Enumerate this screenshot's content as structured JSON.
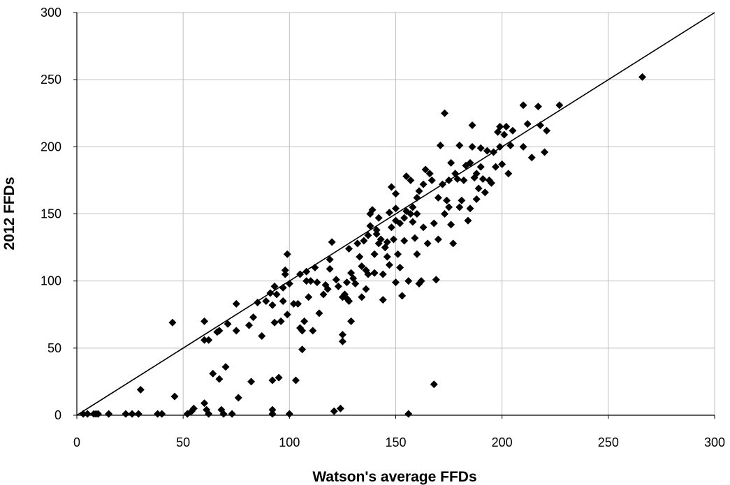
{
  "chart_data": {
    "type": "scatter",
    "title": "",
    "xlabel": "Watson's average FFDs",
    "ylabel": "2012 FFDs",
    "xlim": [
      0,
      300
    ],
    "ylim": [
      0,
      300
    ],
    "xticks": [
      0,
      50,
      100,
      150,
      200,
      250,
      300
    ],
    "yticks": [
      0,
      50,
      100,
      150,
      200,
      250,
      300
    ],
    "grid": true,
    "legend": "none",
    "marker": "diamond",
    "colors": {
      "marker": "#000000",
      "grid": "#bfbfbf",
      "axis": "#000000",
      "line": "#000000"
    },
    "reference_line": {
      "x": [
        0,
        300
      ],
      "y": [
        0,
        300
      ]
    },
    "points": [
      [
        3,
        1
      ],
      [
        5,
        1
      ],
      [
        8,
        1
      ],
      [
        9,
        1
      ],
      [
        10,
        1
      ],
      [
        15,
        1
      ],
      [
        23,
        1
      ],
      [
        26,
        1
      ],
      [
        29,
        1
      ],
      [
        30,
        19
      ],
      [
        38,
        1
      ],
      [
        40,
        1
      ],
      [
        45,
        69
      ],
      [
        46,
        14
      ],
      [
        52,
        1
      ],
      [
        54,
        3
      ],
      [
        55,
        5
      ],
      [
        60,
        70
      ],
      [
        60,
        56
      ],
      [
        60,
        9
      ],
      [
        61,
        4
      ],
      [
        62,
        1
      ],
      [
        62,
        56
      ],
      [
        64,
        31
      ],
      [
        66,
        62
      ],
      [
        67,
        63
      ],
      [
        67,
        27
      ],
      [
        68,
        4
      ],
      [
        69,
        1
      ],
      [
        70,
        36
      ],
      [
        71,
        68
      ],
      [
        73,
        1
      ],
      [
        75,
        63
      ],
      [
        75,
        83
      ],
      [
        76,
        13
      ],
      [
        81,
        67
      ],
      [
        82,
        25
      ],
      [
        83,
        73
      ],
      [
        85,
        84
      ],
      [
        87,
        59
      ],
      [
        89,
        85
      ],
      [
        91,
        91
      ],
      [
        92,
        4
      ],
      [
        92,
        1
      ],
      [
        92,
        26
      ],
      [
        92,
        82
      ],
      [
        93,
        96
      ],
      [
        93,
        69
      ],
      [
        94,
        90
      ],
      [
        95,
        28
      ],
      [
        96,
        70
      ],
      [
        97,
        95
      ],
      [
        97,
        85
      ],
      [
        98,
        105
      ],
      [
        98,
        108
      ],
      [
        99,
        120
      ],
      [
        99,
        75
      ],
      [
        100,
        1
      ],
      [
        100,
        98
      ],
      [
        102,
        83
      ],
      [
        103,
        26
      ],
      [
        104,
        83
      ],
      [
        105,
        65
      ],
      [
        105,
        105
      ],
      [
        106,
        49
      ],
      [
        106,
        63
      ],
      [
        107,
        70
      ],
      [
        108,
        107
      ],
      [
        108,
        100
      ],
      [
        109,
        88
      ],
      [
        110,
        100
      ],
      [
        111,
        63
      ],
      [
        112,
        110
      ],
      [
        113,
        99
      ],
      [
        114,
        76
      ],
      [
        116,
        90
      ],
      [
        117,
        97
      ],
      [
        118,
        94
      ],
      [
        119,
        116
      ],
      [
        119,
        109
      ],
      [
        120,
        129
      ],
      [
        121,
        3
      ],
      [
        122,
        101
      ],
      [
        123,
        96
      ],
      [
        124,
        5
      ],
      [
        125,
        55
      ],
      [
        125,
        60
      ],
      [
        125,
        88
      ],
      [
        126,
        90
      ],
      [
        127,
        87
      ],
      [
        127,
        99
      ],
      [
        128,
        124
      ],
      [
        128,
        85
      ],
      [
        129,
        106
      ],
      [
        129,
        70
      ],
      [
        130,
        102
      ],
      [
        131,
        98
      ],
      [
        132,
        128
      ],
      [
        133,
        118
      ],
      [
        134,
        111
      ],
      [
        134,
        88
      ],
      [
        135,
        130
      ],
      [
        136,
        94
      ],
      [
        136,
        108
      ],
      [
        137,
        134
      ],
      [
        137,
        105
      ],
      [
        138,
        150
      ],
      [
        138,
        141
      ],
      [
        139,
        153
      ],
      [
        140,
        120
      ],
      [
        140,
        106
      ],
      [
        141,
        138
      ],
      [
        141,
        135
      ],
      [
        142,
        147
      ],
      [
        142,
        128
      ],
      [
        143,
        131
      ],
      [
        144,
        86
      ],
      [
        144,
        105
      ],
      [
        145,
        125
      ],
      [
        146,
        129
      ],
      [
        146,
        118
      ],
      [
        147,
        112
      ],
      [
        147,
        151
      ],
      [
        148,
        140
      ],
      [
        148,
        170
      ],
      [
        149,
        131
      ],
      [
        150,
        165
      ],
      [
        150,
        154
      ],
      [
        150,
        99
      ],
      [
        150,
        145
      ],
      [
        151,
        120
      ],
      [
        152,
        143
      ],
      [
        152,
        110
      ],
      [
        153,
        89
      ],
      [
        154,
        147
      ],
      [
        154,
        130
      ],
      [
        155,
        152
      ],
      [
        155,
        178
      ],
      [
        156,
        100
      ],
      [
        156,
        1
      ],
      [
        157,
        150
      ],
      [
        157,
        175
      ],
      [
        158,
        144
      ],
      [
        158,
        155
      ],
      [
        159,
        132
      ],
      [
        160,
        120
      ],
      [
        160,
        150
      ],
      [
        160,
        162
      ],
      [
        161,
        167
      ],
      [
        161,
        98
      ],
      [
        162,
        100
      ],
      [
        163,
        140
      ],
      [
        163,
        172
      ],
      [
        164,
        183
      ],
      [
        165,
        128
      ],
      [
        166,
        180
      ],
      [
        167,
        175
      ],
      [
        168,
        23
      ],
      [
        168,
        143
      ],
      [
        169,
        101
      ],
      [
        170,
        131
      ],
      [
        170,
        162
      ],
      [
        171,
        201
      ],
      [
        172,
        172
      ],
      [
        173,
        225
      ],
      [
        173,
        150
      ],
      [
        174,
        160
      ],
      [
        175,
        175
      ],
      [
        175,
        155
      ],
      [
        176,
        188
      ],
      [
        176,
        142
      ],
      [
        177,
        128
      ],
      [
        178,
        180
      ],
      [
        179,
        176
      ],
      [
        180,
        201
      ],
      [
        180,
        155
      ],
      [
        181,
        160
      ],
      [
        182,
        175
      ],
      [
        183,
        186
      ],
      [
        184,
        145
      ],
      [
        185,
        188
      ],
      [
        185,
        154
      ],
      [
        186,
        216
      ],
      [
        186,
        200
      ],
      [
        187,
        177
      ],
      [
        188,
        180
      ],
      [
        188,
        161
      ],
      [
        189,
        169
      ],
      [
        190,
        185
      ],
      [
        190,
        199
      ],
      [
        191,
        176
      ],
      [
        192,
        166
      ],
      [
        193,
        197
      ],
      [
        194,
        175
      ],
      [
        195,
        173
      ],
      [
        196,
        196
      ],
      [
        197,
        185
      ],
      [
        198,
        211
      ],
      [
        199,
        200
      ],
      [
        199,
        215
      ],
      [
        200,
        187
      ],
      [
        201,
        209
      ],
      [
        202,
        215
      ],
      [
        203,
        180
      ],
      [
        204,
        201
      ],
      [
        205,
        212
      ],
      [
        210,
        231
      ],
      [
        210,
        200
      ],
      [
        212,
        217
      ],
      [
        214,
        192
      ],
      [
        217,
        230
      ],
      [
        218,
        216
      ],
      [
        220,
        196
      ],
      [
        221,
        212
      ],
      [
        227,
        231
      ],
      [
        266,
        252
      ]
    ]
  }
}
